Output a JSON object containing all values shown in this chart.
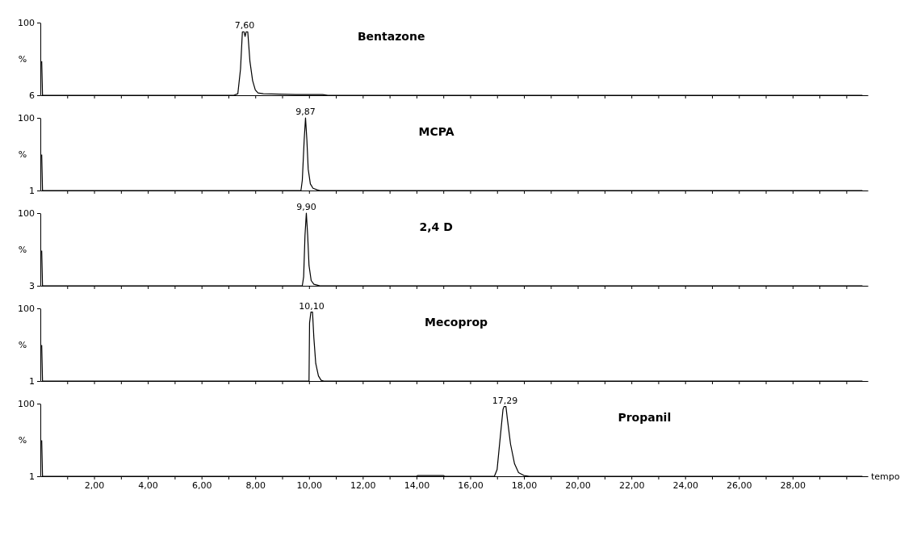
{
  "chart_data": [
    {
      "type": "line",
      "ylabel": "%",
      "xlim": [
        0,
        30.8
      ],
      "ylim": [
        6,
        100
      ],
      "yticks": [
        6,
        100
      ],
      "tick_labels": "y",
      "line_style": "solid",
      "xticks": [
        {
          "value": 1,
          "label": null
        },
        {
          "value": 2,
          "label": null
        },
        {
          "value": 3,
          "label": null
        },
        {
          "value": 4,
          "label": null
        },
        {
          "value": 5,
          "label": null
        },
        {
          "value": 6,
          "label": null
        },
        {
          "value": 7,
          "label": null
        },
        {
          "value": 8,
          "label": null
        },
        {
          "value": 9,
          "label": null
        },
        {
          "value": 10,
          "label": null
        },
        {
          "value": 11,
          "label": null
        },
        {
          "value": 12,
          "label": null
        },
        {
          "value": 13,
          "label": null
        },
        {
          "value": 14,
          "label": null
        },
        {
          "value": 15,
          "label": null
        },
        {
          "value": 16,
          "label": null
        },
        {
          "value": 17,
          "label": null
        },
        {
          "value": 18,
          "label": null
        },
        {
          "value": 19,
          "label": null
        },
        {
          "value": 20,
          "label": null
        },
        {
          "value": 21,
          "label": null
        },
        {
          "value": 22,
          "label": null
        },
        {
          "value": 23,
          "label": null
        },
        {
          "value": 24,
          "label": null
        },
        {
          "value": 25,
          "label": null
        },
        {
          "value": 26,
          "label": null
        },
        {
          "value": 27,
          "label": null
        },
        {
          "value": 28,
          "label": null
        },
        {
          "value": 29,
          "label": null
        },
        {
          "value": 30,
          "label": null
        }
      ],
      "series": [
        {
          "color": "#000000",
          "x": [
            0.05,
            0.08,
            7.2,
            7.35,
            7.45,
            7.52,
            7.58,
            7.62,
            7.66,
            7.72,
            7.8,
            7.9,
            8.0,
            8.1,
            8.3,
            9.5,
            10.5,
            10.7,
            30.6
          ],
          "values": [
            50,
            6,
            6,
            8,
            40,
            88,
            88,
            82,
            88,
            88,
            50,
            25,
            13,
            9,
            8,
            7,
            7,
            6,
            6
          ]
        }
      ],
      "title": "Bentazone",
      "annotations": [
        {
          "text": "7,60",
          "x": 7.6,
          "y": 88
        }
      ]
    },
    {
      "type": "line",
      "ylabel": "%",
      "xlim": [
        0,
        30.8
      ],
      "ylim": [
        1,
        100
      ],
      "yticks": [
        1,
        100
      ],
      "tick_labels": "y",
      "line_style": "solid",
      "xticks": [
        {
          "value": 1,
          "label": null
        },
        {
          "value": 2,
          "label": null
        },
        {
          "value": 3,
          "label": null
        },
        {
          "value": 4,
          "label": null
        },
        {
          "value": 5,
          "label": null
        },
        {
          "value": 6,
          "label": null
        },
        {
          "value": 7,
          "label": null
        },
        {
          "value": 8,
          "label": null
        },
        {
          "value": 9,
          "label": null
        },
        {
          "value": 10,
          "label": null
        },
        {
          "value": 11,
          "label": null
        },
        {
          "value": 12,
          "label": null
        },
        {
          "value": 13,
          "label": null
        },
        {
          "value": 14,
          "label": null
        },
        {
          "value": 15,
          "label": null
        },
        {
          "value": 16,
          "label": null
        },
        {
          "value": 17,
          "label": null
        },
        {
          "value": 18,
          "label": null
        },
        {
          "value": 19,
          "label": null
        },
        {
          "value": 20,
          "label": null
        },
        {
          "value": 21,
          "label": null
        },
        {
          "value": 22,
          "label": null
        },
        {
          "value": 23,
          "label": null
        },
        {
          "value": 24,
          "label": null
        },
        {
          "value": 25,
          "label": null
        },
        {
          "value": 26,
          "label": null
        },
        {
          "value": 27,
          "label": null
        },
        {
          "value": 28,
          "label": null
        },
        {
          "value": 29,
          "label": null
        },
        {
          "value": 30,
          "label": null
        }
      ],
      "series": [
        {
          "color": "#000000",
          "x": [
            0.05,
            0.08,
            9.7,
            9.75,
            9.82,
            9.87,
            9.92,
            9.97,
            10.05,
            10.15,
            10.3,
            10.4,
            30.6
          ],
          "values": [
            50,
            1,
            1,
            15,
            70,
            100,
            70,
            30,
            10,
            4,
            2,
            1,
            1
          ]
        }
      ],
      "title": "MCPA",
      "annotations": [
        {
          "text": "9,87",
          "x": 9.87,
          "y": 100
        }
      ]
    },
    {
      "type": "line",
      "ylabel": "%",
      "xlim": [
        0,
        30.8
      ],
      "ylim": [
        3,
        100
      ],
      "yticks": [
        3,
        100
      ],
      "tick_labels": "y",
      "line_style": "solid",
      "xticks": [
        {
          "value": 1,
          "label": null
        },
        {
          "value": 2,
          "label": null
        },
        {
          "value": 3,
          "label": null
        },
        {
          "value": 4,
          "label": null
        },
        {
          "value": 5,
          "label": null
        },
        {
          "value": 6,
          "label": null
        },
        {
          "value": 7,
          "label": null
        },
        {
          "value": 8,
          "label": null
        },
        {
          "value": 9,
          "label": null
        },
        {
          "value": 10,
          "label": null
        },
        {
          "value": 11,
          "label": null
        },
        {
          "value": 12,
          "label": null
        },
        {
          "value": 13,
          "label": null
        },
        {
          "value": 14,
          "label": null
        },
        {
          "value": 15,
          "label": null
        },
        {
          "value": 16,
          "label": null
        },
        {
          "value": 17,
          "label": null
        },
        {
          "value": 18,
          "label": null
        },
        {
          "value": 19,
          "label": null
        },
        {
          "value": 20,
          "label": null
        },
        {
          "value": 21,
          "label": null
        },
        {
          "value": 22,
          "label": null
        },
        {
          "value": 23,
          "label": null
        },
        {
          "value": 24,
          "label": null
        },
        {
          "value": 25,
          "label": null
        },
        {
          "value": 26,
          "label": null
        },
        {
          "value": 27,
          "label": null
        },
        {
          "value": 28,
          "label": null
        },
        {
          "value": 29,
          "label": null
        },
        {
          "value": 30,
          "label": null
        }
      ],
      "series": [
        {
          "color": "#000000",
          "x": [
            0.05,
            0.08,
            9.75,
            9.8,
            9.85,
            9.9,
            9.95,
            10.0,
            10.08,
            10.18,
            10.3,
            10.4,
            30.6
          ],
          "values": [
            50,
            3,
            3,
            15,
            70,
            100,
            70,
            30,
            10,
            5,
            4,
            3,
            3
          ]
        }
      ],
      "title": "2,4 D",
      "annotations": [
        {
          "text": "9,90",
          "x": 9.9,
          "y": 100
        }
      ]
    },
    {
      "type": "line",
      "ylabel": "%",
      "xlim": [
        0,
        30.8
      ],
      "ylim": [
        1,
        100
      ],
      "yticks": [
        1,
        100
      ],
      "tick_labels": "y",
      "line_style": "solid",
      "xticks": [
        {
          "value": 1,
          "label": null
        },
        {
          "value": 2,
          "label": null
        },
        {
          "value": 3,
          "label": null
        },
        {
          "value": 4,
          "label": null
        },
        {
          "value": 5,
          "label": null
        },
        {
          "value": 6,
          "label": null
        },
        {
          "value": 7,
          "label": null
        },
        {
          "value": 8,
          "label": null
        },
        {
          "value": 9,
          "label": null
        },
        {
          "value": 10,
          "label": null
        },
        {
          "value": 11,
          "label": null
        },
        {
          "value": 12,
          "label": null
        },
        {
          "value": 13,
          "label": null
        },
        {
          "value": 14,
          "label": null
        },
        {
          "value": 15,
          "label": null
        },
        {
          "value": 16,
          "label": null
        },
        {
          "value": 17,
          "label": null
        },
        {
          "value": 18,
          "label": null
        },
        {
          "value": 19,
          "label": null
        },
        {
          "value": 20,
          "label": null
        },
        {
          "value": 21,
          "label": null
        },
        {
          "value": 22,
          "label": null
        },
        {
          "value": 23,
          "label": null
        },
        {
          "value": 24,
          "label": null
        },
        {
          "value": 25,
          "label": null
        },
        {
          "value": 26,
          "label": null
        },
        {
          "value": 27,
          "label": null
        },
        {
          "value": 28,
          "label": null
        },
        {
          "value": 29,
          "label": null
        },
        {
          "value": 30,
          "label": null
        }
      ],
      "series": [
        {
          "color": "#000000",
          "x": [
            0.05,
            0.08,
            10.0,
            10.02,
            10.07,
            10.13,
            10.18,
            10.25,
            10.35,
            10.45,
            10.55,
            30.6
          ],
          "values": [
            50,
            1,
            1,
            80,
            95,
            95,
            60,
            25,
            8,
            2,
            1,
            1
          ]
        }
      ],
      "title": "Mecoprop",
      "annotations": [
        {
          "text": "10,10",
          "x": 10.1,
          "y": 95
        }
      ]
    },
    {
      "type": "line",
      "ylabel": "%",
      "xlabel": "tempo",
      "xlim": [
        0,
        30.8
      ],
      "ylim": [
        1,
        100
      ],
      "yticks": [
        1,
        100
      ],
      "line_style": "solid",
      "xticks": [
        {
          "value": 1,
          "label": null
        },
        {
          "value": 2,
          "label": "2,00"
        },
        {
          "value": 3,
          "label": null
        },
        {
          "value": 4,
          "label": "4,00"
        },
        {
          "value": 5,
          "label": null
        },
        {
          "value": 6,
          "label": "6,00"
        },
        {
          "value": 7,
          "label": null
        },
        {
          "value": 8,
          "label": "8,00"
        },
        {
          "value": 9,
          "label": null
        },
        {
          "value": 10,
          "label": "10,00"
        },
        {
          "value": 11,
          "label": null
        },
        {
          "value": 12,
          "label": "12,00"
        },
        {
          "value": 13,
          "label": null
        },
        {
          "value": 14,
          "label": "14,00"
        },
        {
          "value": 15,
          "label": null
        },
        {
          "value": 16,
          "label": "16,00"
        },
        {
          "value": 17,
          "label": null
        },
        {
          "value": 18,
          "label": "18,00"
        },
        {
          "value": 19,
          "label": null
        },
        {
          "value": 20,
          "label": "20,00"
        },
        {
          "value": 21,
          "label": null
        },
        {
          "value": 22,
          "label": "22,00"
        },
        {
          "value": 23,
          "label": null
        },
        {
          "value": 24,
          "label": "24,00"
        },
        {
          "value": 25,
          "label": null
        },
        {
          "value": 26,
          "label": "26,00"
        },
        {
          "value": 27,
          "label": null
        },
        {
          "value": 28,
          "label": "28,00"
        },
        {
          "value": 29,
          "label": null
        },
        {
          "value": 30,
          "label": null
        }
      ],
      "series": [
        {
          "color": "#000000",
          "x": [
            0.05,
            0.08,
            14.0,
            14.05,
            15.0,
            15.05,
            16.9,
            17.0,
            17.12,
            17.22,
            17.26,
            17.33,
            17.38,
            17.5,
            17.65,
            17.8,
            18.0,
            18.2,
            30.6
          ],
          "values": [
            50,
            1,
            1,
            2,
            2,
            1,
            1,
            10,
            55,
            92,
            96,
            96,
            80,
            45,
            18,
            6,
            2,
            1,
            1
          ]
        }
      ],
      "title": "Propanil",
      "annotations": [
        {
          "text": "17,29",
          "x": 17.29,
          "y": 96
        }
      ]
    }
  ]
}
